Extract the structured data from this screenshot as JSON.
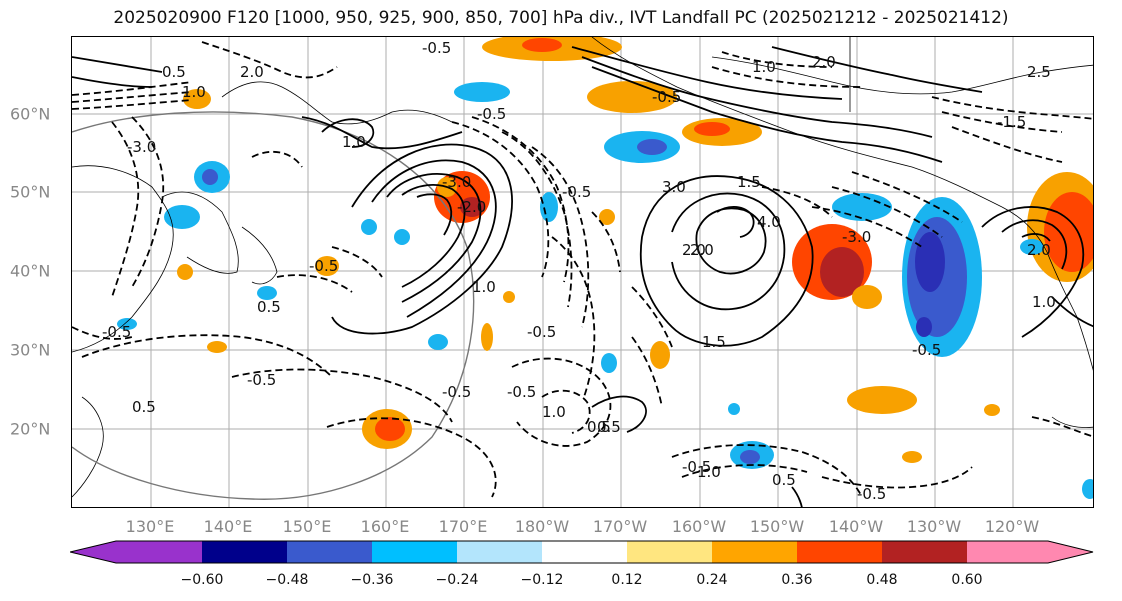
{
  "header": {
    "title": "2025020900 F120 [1000, 950, 925, 900, 850, 700] hPa div., IVT Landfall PC (2025021212 - 2025021412)"
  },
  "map": {
    "lat_labels": [
      "60°N",
      "50°N",
      "40°N",
      "30°N",
      "20°N"
    ],
    "lon_labels": [
      "130°E",
      "140°E",
      "150°E",
      "160°E",
      "170°E",
      "180°W",
      "170°W",
      "160°W",
      "150°W",
      "140°W",
      "130°W",
      "120°W"
    ],
    "contour_labels": [
      "-0.5",
      "2.0",
      "0.5",
      "1.0",
      "-3.0",
      "-0.5",
      "-0.5",
      "1.0",
      "2.0",
      "-3.0",
      "1.0",
      "-0.5",
      "-2.0",
      "1.0",
      "3.0",
      "1.5",
      "2.0",
      "4.0",
      "-3.0",
      "2.0",
      "-0.5",
      "-0.5",
      "-0.5",
      "-0.5",
      "0.5",
      "1.5",
      "-0.5",
      "0.5",
      "-0.5",
      "0.5",
      "1.0",
      "0.5",
      "-0.5",
      "1.0",
      "0.5",
      "-0.5",
      "2.0",
      "1.0",
      "-1.5",
      "-0.5",
      "2.5"
    ],
    "colors": {
      "land_outline": "#000000",
      "grid": "#999999",
      "neg_deep": "#2a2fb5",
      "neg_mid": "#3a5acd",
      "neg_light": "#1ab4f0",
      "pos_light": "#f8a100",
      "pos_mid": "#ff4500",
      "pos_deep": "#b22222",
      "yellow_edge": "#ffe680"
    }
  },
  "colorbar": {
    "ticks": [
      "−0.60",
      "−0.48",
      "−0.36",
      "−0.24",
      "−0.12",
      "0.12",
      "0.24",
      "0.36",
      "0.48",
      "0.60"
    ],
    "segment_colors": [
      "#9932cc",
      "#00008b",
      "#3a5acd",
      "#00bfff",
      "#b3e5fc",
      "#ffffff",
      "#ffe680",
      "#ffa500",
      "#ff4500",
      "#b22222",
      "#ff88b0"
    ]
  }
}
